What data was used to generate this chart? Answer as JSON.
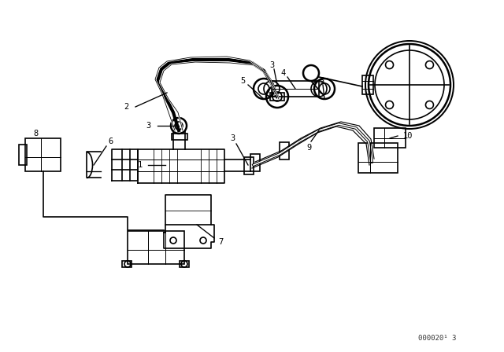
{
  "bg_color": "#ffffff",
  "line_color": "#000000",
  "lw": 1.2,
  "fig_width": 6.4,
  "fig_height": 4.48,
  "dpi": 100,
  "watermark": "000020¹ 3"
}
